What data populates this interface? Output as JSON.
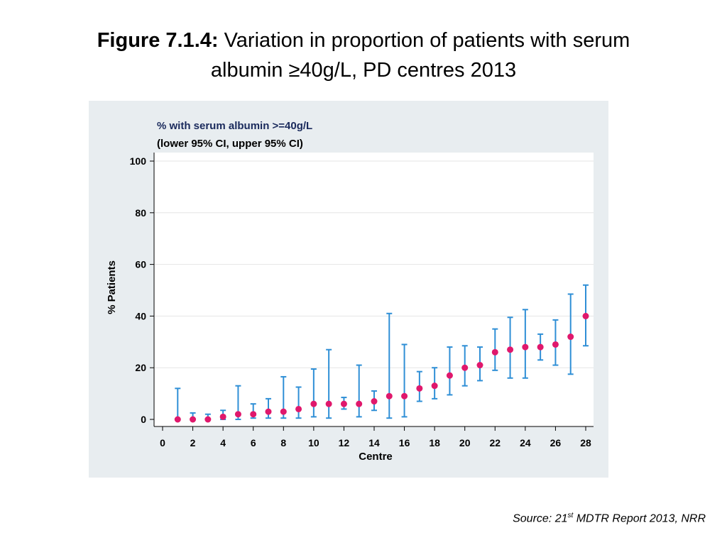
{
  "header": {
    "figure_label": "Figure 7.1.4:",
    "title_line1": " Variation in proportion of patients with serum",
    "title_line2": "albumin ≥40g/L, PD centres 2013"
  },
  "source": {
    "prefix": "Source: 21",
    "sup": "st",
    "suffix": " MDTR Report 2013, NRR"
  },
  "chart_data": {
    "type": "scatter",
    "title": "% with serum albumin >=40g/L",
    "subtitle": "(lower 95% CI, upper 95% CI)",
    "xlabel": "Centre",
    "ylabel": "% Patients",
    "xlim": [
      0,
      28
    ],
    "ylim": [
      0,
      100
    ],
    "xticks": [
      0,
      2,
      4,
      6,
      8,
      10,
      12,
      14,
      16,
      18,
      20,
      22,
      24,
      26,
      28
    ],
    "yticks": [
      0,
      20,
      40,
      60,
      80,
      100
    ],
    "grid": true,
    "colors": {
      "point": "#e0186c",
      "errorbar": "#2f8fd6",
      "title": "#1a2a5c",
      "plot_bg": "#ffffff",
      "panel_bg": "#e8edf0",
      "grid": "#e6e6e6"
    },
    "series": [
      {
        "x": [
          1,
          2,
          3,
          4,
          5,
          6,
          7,
          8,
          9,
          10,
          11,
          12,
          13,
          14,
          15,
          16,
          17,
          18,
          19,
          20,
          21,
          22,
          23,
          24,
          25,
          26,
          27,
          28
        ],
        "y": [
          0,
          0,
          0,
          1,
          2,
          2,
          3,
          3,
          4,
          6,
          6,
          6,
          6,
          7,
          9,
          9,
          12,
          13,
          17,
          20,
          21,
          26,
          27,
          28,
          28,
          29,
          32,
          40
        ],
        "lower": [
          0,
          0,
          0,
          0,
          0,
          0.5,
          0.5,
          0.5,
          0.5,
          1,
          0.5,
          4,
          1,
          3.5,
          0.5,
          1,
          7,
          8,
          9.5,
          13,
          15,
          19,
          16,
          16,
          23,
          21,
          17.5,
          28.5
        ],
        "upper": [
          12,
          2.5,
          2,
          3.5,
          13,
          6,
          8,
          16.5,
          12.5,
          19.5,
          27,
          8.5,
          21,
          11,
          41,
          29,
          18.5,
          20,
          28,
          28.5,
          28,
          35,
          39.5,
          42.5,
          33,
          38.5,
          48.5,
          52
        ]
      }
    ]
  }
}
